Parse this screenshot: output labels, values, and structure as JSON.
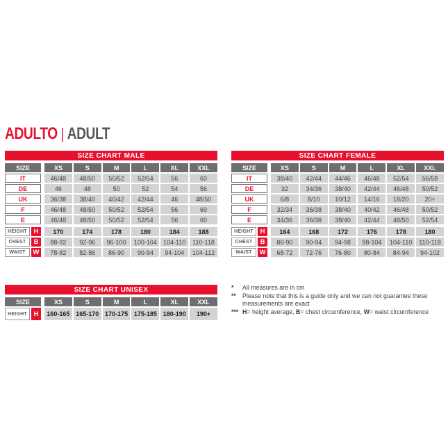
{
  "title": {
    "primary": "ADULTO",
    "separator": "|",
    "secondary": "ADULT"
  },
  "colors": {
    "red": "#e8112d",
    "header_gray": "#6d6e71",
    "cell_gray": "#d2d3d4",
    "text_dark": "#414042",
    "label_gray": "#58595b"
  },
  "size_header_label": "SIZE",
  "columns": [
    "XS",
    "S",
    "M",
    "L",
    "XL",
    "XXL"
  ],
  "tables": {
    "male": {
      "title": "SIZE CHART MALE",
      "size_rows": [
        {
          "label": "IT",
          "values": [
            "46/48",
            "48/50",
            "50/52",
            "52/54",
            "56",
            "60"
          ]
        },
        {
          "label": "DE",
          "values": [
            "46",
            "48",
            "50",
            "52",
            "54",
            "56"
          ]
        },
        {
          "label": "UK",
          "values": [
            "36/38",
            "38/40",
            "40/42",
            "42/44",
            "46",
            "48/50"
          ]
        },
        {
          "label": "F",
          "values": [
            "46/48",
            "48/50",
            "50/52",
            "52/54",
            "56",
            "60"
          ]
        },
        {
          "label": "E",
          "values": [
            "46/48",
            "48/50",
            "50/52",
            "52/54",
            "56",
            "60"
          ]
        }
      ],
      "measure_rows": [
        {
          "label": "HEIGHT",
          "letter": "H",
          "bold": true,
          "values": [
            "170",
            "174",
            "178",
            "180",
            "184",
            "188"
          ]
        },
        {
          "label": "CHEST",
          "letter": "B",
          "bold": false,
          "values": [
            "88-92",
            "92-96",
            "96-100",
            "100-104",
            "104-110",
            "110-118"
          ]
        },
        {
          "label": "WAIST",
          "letter": "W",
          "bold": false,
          "values": [
            "78-82",
            "82-86",
            "86-90",
            "90-94",
            "94-104",
            "104-112"
          ]
        }
      ]
    },
    "female": {
      "title": "SIZE CHART FEMALE",
      "size_rows": [
        {
          "label": "IT",
          "values": [
            "38/40",
            "42/44",
            "44/46",
            "46/48",
            "52/54",
            "56/58"
          ]
        },
        {
          "label": "DE",
          "values": [
            "32",
            "34/36",
            "38/40",
            "42/44",
            "46/48",
            "50/52"
          ]
        },
        {
          "label": "UK",
          "values": [
            "6/8",
            "8/10",
            "10/12",
            "14/16",
            "18/20",
            "20+"
          ]
        },
        {
          "label": "F",
          "values": [
            "32/34",
            "36/38",
            "38/40",
            "40/42",
            "46/48",
            "50/52"
          ]
        },
        {
          "label": "E",
          "values": [
            "34/36",
            "36/38",
            "38/40",
            "42/44",
            "48/50",
            "52/54"
          ]
        }
      ],
      "measure_rows": [
        {
          "label": "HEIGHT",
          "letter": "H",
          "bold": true,
          "values": [
            "164",
            "168",
            "172",
            "176",
            "178",
            "180"
          ]
        },
        {
          "label": "CHEST",
          "letter": "B",
          "bold": false,
          "values": [
            "86-90",
            "90-94",
            "94-98",
            "98-104",
            "104-110",
            "110-118"
          ]
        },
        {
          "label": "WAIST",
          "letter": "W",
          "bold": false,
          "values": [
            "68-72",
            "72-76",
            "76-80",
            "80-84",
            "84-94",
            "94-102"
          ]
        }
      ]
    },
    "unisex": {
      "title": "SIZE CHART UNISEX",
      "size_rows": [],
      "measure_rows": [
        {
          "label": "HEIGHT",
          "letter": "H",
          "bold": true,
          "tall": true,
          "values": [
            "160-165",
            "165-170",
            "170-175",
            "175-185",
            "180-190",
            "190+"
          ]
        }
      ]
    }
  },
  "footnotes": [
    {
      "marker": "*",
      "segments": [
        {
          "text": "All measures are in cm"
        }
      ]
    },
    {
      "marker": "**",
      "segments": [
        {
          "text": "Please note that this is a guide only and we can not guarantee these measurements are exact"
        }
      ]
    },
    {
      "marker": "***",
      "segments": [
        {
          "text": "H",
          "bold": true
        },
        {
          "text": "= height average, "
        },
        {
          "text": "B",
          "bold": true
        },
        {
          "text": "= chest circumference, "
        },
        {
          "text": "W",
          "bold": true
        },
        {
          "text": "= waist circumference"
        }
      ]
    }
  ]
}
